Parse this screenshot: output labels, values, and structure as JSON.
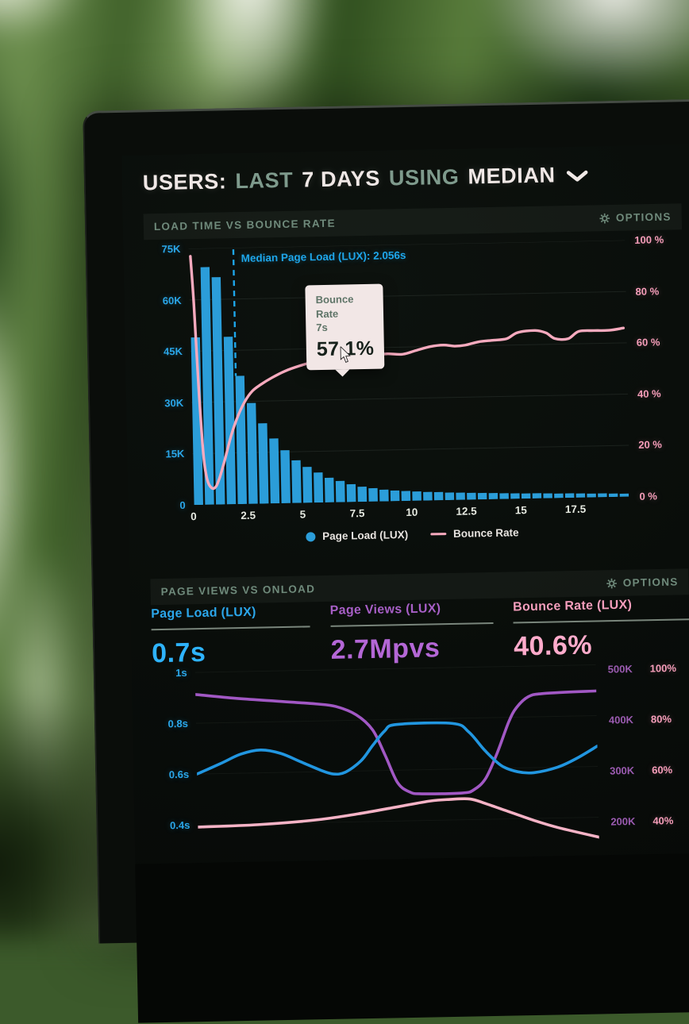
{
  "header": {
    "users": "USERS:",
    "last": "LAST",
    "days": "7 DAYS",
    "using": "USING",
    "median": "MEDIAN"
  },
  "panels": [
    {
      "title": "LOAD TIME VS BOUNCE RATE",
      "options": "OPTIONS"
    },
    {
      "title": "PAGE VIEWS VS ONLOAD",
      "options": "OPTIONS"
    }
  ],
  "tooltip": {
    "series": "Bounce Rate",
    "x": "7s",
    "value": "57.1%"
  },
  "legend": {
    "bars": "Page Load (LUX)",
    "line": "Bounce Rate"
  },
  "metrics": [
    {
      "label": "Page Load (LUX)",
      "value": "0.7s",
      "color": "#2ba6ea"
    },
    {
      "label": "Page Views (LUX)",
      "value": "2.7Mpvs",
      "color": "#a75fc6"
    },
    {
      "label": "Bounce Rate (LUX)",
      "value": "40.6%",
      "color": "#f59ebc"
    }
  ],
  "colors": {
    "screen_bg": "#0a0e0b",
    "sage_text": "#6f8a7b",
    "title_white": "#f0e8e6",
    "blue": "#2aa6e8",
    "pink": "#f59db9",
    "purple": "#9a5bb0"
  },
  "chart_data": [
    {
      "type": "bar",
      "title": "LOAD TIME VS BOUNCE RATE",
      "xlabel": "",
      "xlim": [
        0,
        20
      ],
      "x_ticks": [
        0,
        2.5,
        5,
        7.5,
        10,
        12.5,
        15,
        17.5
      ],
      "x_tick_labels": [
        "0",
        "2.5",
        "5",
        "7.5",
        "10",
        "12.5",
        "15",
        "17.5"
      ],
      "left_axis": {
        "name": "Page Load (LUX)",
        "unit": "K",
        "min": 0,
        "max": 75,
        "tick_labels": [
          "75K",
          "60K",
          "45K",
          "30K",
          "15K",
          "0"
        ],
        "color": "#2aa6e8"
      },
      "right_axis": {
        "name": "Bounce Rate",
        "unit": "%",
        "min": 0,
        "max": 100,
        "tick_labels": [
          "100 %",
          "80 %",
          "60 %",
          "40 %",
          "20 %",
          "0 %"
        ],
        "color": "#f59db9"
      },
      "bars": {
        "name": "Page Load (LUX)",
        "color": "#2b9dd9",
        "bin_width": 0.5,
        "values_k": [
          49,
          69.5,
          66.5,
          49,
          37.5,
          29.5,
          23.5,
          19,
          15.5,
          12.5,
          10.5,
          8.8,
          7.2,
          6.2,
          5.2,
          4.4,
          3.9,
          3.4,
          3.1,
          2.9,
          2.7,
          2.5,
          2.4,
          2.2,
          2.1,
          2.0,
          1.9,
          1.8,
          1.7,
          1.6,
          1.5,
          1.5,
          1.4,
          1.3,
          1.3,
          1.2,
          1.1,
          1.1,
          1.0,
          0.9
        ]
      },
      "line": {
        "name": "Bounce Rate",
        "color": "#f7aabe",
        "points": [
          [
            0.08,
            97
          ],
          [
            0.2,
            78
          ],
          [
            0.35,
            45
          ],
          [
            0.5,
            20
          ],
          [
            0.65,
            10
          ],
          [
            0.85,
            6.5
          ],
          [
            1.05,
            7
          ],
          [
            1.25,
            11
          ],
          [
            1.5,
            18
          ],
          [
            1.8,
            27
          ],
          [
            2.1,
            34
          ],
          [
            2.45,
            40
          ],
          [
            2.8,
            44
          ],
          [
            3.2,
            46.5
          ],
          [
            3.7,
            49
          ],
          [
            4.3,
            51.5
          ],
          [
            5,
            53.5
          ],
          [
            5.7,
            55
          ],
          [
            6.3,
            55.5
          ],
          [
            7,
            57.1
          ],
          [
            7.6,
            56.5
          ],
          [
            8.3,
            57
          ],
          [
            9,
            57.5
          ],
          [
            9.7,
            57.2
          ],
          [
            10.3,
            58.5
          ],
          [
            11,
            60
          ],
          [
            11.6,
            60.5
          ],
          [
            12.1,
            60
          ],
          [
            12.6,
            60.3
          ],
          [
            13.2,
            61.5
          ],
          [
            13.9,
            62
          ],
          [
            14.5,
            62.5
          ],
          [
            15,
            64.8
          ],
          [
            15.8,
            65.5
          ],
          [
            16.3,
            64.5
          ],
          [
            16.7,
            62.2
          ],
          [
            17.3,
            62
          ],
          [
            17.8,
            64.8
          ],
          [
            18.5,
            65
          ],
          [
            19.2,
            65
          ],
          [
            19.85,
            65.8
          ]
        ]
      },
      "median": {
        "x": 2.056,
        "label": "Median Page Load (LUX): 2.056s"
      },
      "hover_point": {
        "series": "Bounce Rate",
        "x_s": 7,
        "value_pct": 57.1
      }
    },
    {
      "type": "line",
      "title": "PAGE VIEWS VS ONLOAD",
      "left_axis": {
        "unit": "s",
        "tick_labels": [
          "1s",
          "0.8s",
          "0.6s",
          "0.4s"
        ],
        "tick_values": [
          1,
          0.8,
          0.6,
          0.4
        ],
        "color": "#2aa6e8"
      },
      "right_axis_views": {
        "unit": "K",
        "tick_labels": [
          "500K",
          "400K",
          "300K",
          "200K"
        ],
        "tick_values": [
          500,
          400,
          300,
          200
        ],
        "color": "#9a5bb0"
      },
      "right_axis_bounce": {
        "unit": "%",
        "tick_labels": [
          "100%",
          "80%",
          "60%",
          "40%"
        ],
        "tick_values": [
          100,
          80,
          60,
          40
        ],
        "color": "#f590b4"
      },
      "series": [
        {
          "name": "Page Views (LUX)",
          "axis": "views_k",
          "color": "#a158c4",
          "points": [
            [
              0,
              466
            ],
            [
              10,
              457
            ],
            [
              20,
              450
            ],
            [
              30,
              443
            ],
            [
              35,
              437
            ],
            [
              40,
              420
            ],
            [
              44,
              390
            ],
            [
              47,
              340
            ],
            [
              50,
              285
            ],
            [
              53,
              266
            ],
            [
              56,
              262
            ],
            [
              66,
              262
            ],
            [
              69,
              268
            ],
            [
              72,
              290
            ],
            [
              75,
              340
            ],
            [
              78,
              400
            ],
            [
              80,
              428
            ],
            [
              83,
              449
            ],
            [
              87,
              455
            ],
            [
              100,
              458
            ]
          ]
        },
        {
          "name": "Page Load (LUX)",
          "axis": "seconds",
          "color": "#2196e0",
          "points": [
            [
              0,
              0.6
            ],
            [
              6,
              0.64
            ],
            [
              11,
              0.675
            ],
            [
              16,
              0.69
            ],
            [
              21,
              0.675
            ],
            [
              26,
              0.64
            ],
            [
              31,
              0.605
            ],
            [
              34,
              0.59
            ],
            [
              37,
              0.596
            ],
            [
              41,
              0.64
            ],
            [
              44,
              0.7
            ],
            [
              47,
              0.755
            ],
            [
              50,
              0.78
            ],
            [
              64,
              0.78
            ],
            [
              68,
              0.745
            ],
            [
              72,
              0.67
            ],
            [
              76,
              0.61
            ],
            [
              80,
              0.585
            ],
            [
              84,
              0.58
            ],
            [
              90,
              0.6
            ],
            [
              95,
              0.635
            ],
            [
              100,
              0.68
            ]
          ]
        },
        {
          "name": "Bounce Rate (LUX)",
          "axis": "bounce_pct",
          "color": "#f6b3c6",
          "points": [
            [
              0,
              41
            ],
            [
              15,
              41.5
            ],
            [
              30,
              43
            ],
            [
              40,
              45
            ],
            [
              50,
              47.5
            ],
            [
              58,
              49.5
            ],
            [
              63,
              50
            ],
            [
              68,
              50
            ],
            [
              72,
              48
            ],
            [
              78,
              44.5
            ],
            [
              84,
              41
            ],
            [
              90,
              38
            ],
            [
              100,
              34
            ]
          ]
        }
      ]
    }
  ]
}
